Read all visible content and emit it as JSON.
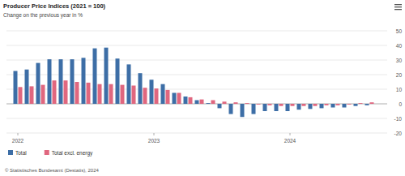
{
  "chart_data": {
    "type": "bar",
    "title": "Producer Price Indices (2021 = 100)",
    "subtitle": "Change on the previous year in %",
    "source": "© Statistisches Bundesamt (Destatis), 2024",
    "categories": [
      "2022",
      null,
      null,
      null,
      null,
      null,
      null,
      null,
      null,
      null,
      null,
      null,
      "2023",
      null,
      null,
      null,
      null,
      null,
      null,
      null,
      null,
      null,
      null,
      null,
      "2024",
      null,
      null,
      null,
      null,
      null,
      null,
      null
    ],
    "series": [
      {
        "name": "Total",
        "color": "#3d6ea6",
        "values": [
          22.5,
          23.5,
          28,
          30.5,
          30.5,
          30.5,
          31.5,
          38,
          38.5,
          31,
          27,
          21,
          16.5,
          13.5,
          7.5,
          5,
          2.5,
          0.5,
          -3,
          -7,
          -9,
          -7,
          -5,
          -5,
          -5,
          -4,
          -3.5,
          -3,
          -2.5,
          -2.5,
          -1.5,
          -1
        ]
      },
      {
        "name": "Total excl. energy",
        "color": "#e0677f",
        "values": [
          11.5,
          12,
          13,
          16,
          16,
          15,
          14.5,
          13.5,
          13.5,
          13,
          12.5,
          11,
          10.5,
          9.5,
          7.5,
          4.5,
          3,
          2.5,
          1.5,
          1,
          0.5,
          -0.5,
          -1,
          -1.5,
          -1.5,
          -1.5,
          -1.5,
          -1,
          -1,
          -0.5,
          0.5,
          1
        ]
      }
    ],
    "ylim": [
      -20,
      50
    ],
    "yticks": [
      -20,
      -10,
      0,
      10,
      20,
      30,
      40,
      50
    ],
    "grid": true,
    "legend": "bottom"
  }
}
